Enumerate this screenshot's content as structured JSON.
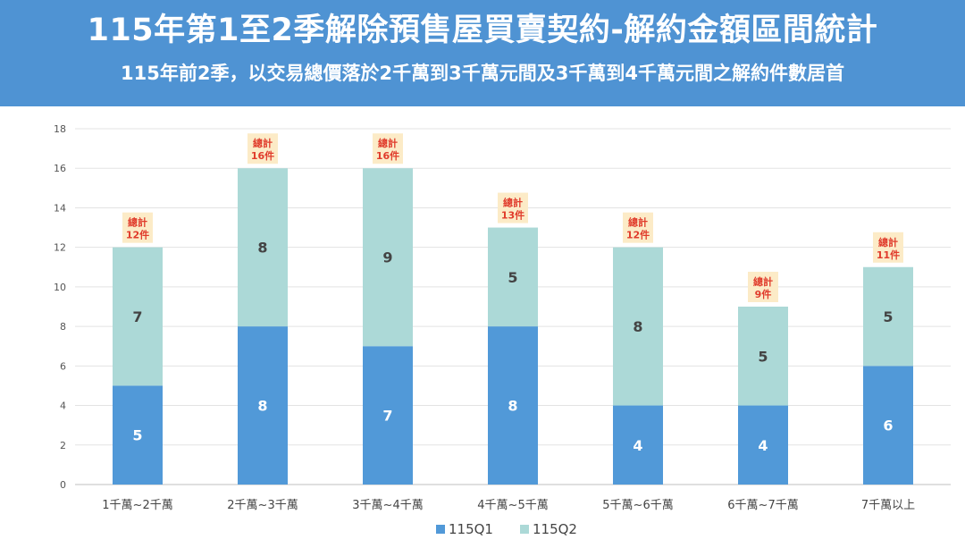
{
  "header": {
    "title": "115年第1至2季解除預售屋買賣契約-解約金額區間統計",
    "subtitle": "115年前2季，以交易總價落於2千萬到3千萬元間及3千萬到4千萬元間之解約件數居首"
  },
  "chart_data": {
    "type": "bar",
    "stacked": true,
    "categories": [
      "1千萬~2千萬",
      "2千萬~3千萬",
      "3千萬~4千萬",
      "4千萬~5千萬",
      "5千萬~6千萬",
      "6千萬~7千萬",
      "7千萬以上"
    ],
    "series": [
      {
        "name": "115Q1",
        "values": [
          5,
          8,
          7,
          8,
          4,
          4,
          6
        ],
        "color": "#5199d8"
      },
      {
        "name": "115Q2",
        "values": [
          7,
          8,
          9,
          5,
          8,
          5,
          5
        ],
        "color": "#acd9d7"
      }
    ],
    "totals_label": "總計",
    "totals_unit": "件",
    "totals": [
      12,
      16,
      16,
      13,
      12,
      9,
      11
    ],
    "ylim": [
      0,
      18
    ],
    "yticks": [
      0,
      2,
      4,
      6,
      8,
      10,
      12,
      14,
      16,
      18
    ],
    "grid": true,
    "legend_position": "bottom",
    "total_box_color": "#fcebc7",
    "total_text_color": "#e03b2b"
  }
}
